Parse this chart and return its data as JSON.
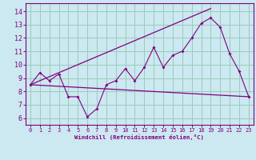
{
  "bg_color": "#cce8f0",
  "line_color": "#800080",
  "grid_color": "#99ccbb",
  "xlabel": "Windchill (Refroidissement éolien,°C)",
  "xlabel_color": "#800080",
  "ylabel_yticks": [
    6,
    7,
    8,
    9,
    10,
    11,
    12,
    13,
    14
  ],
  "xticks": [
    0,
    1,
    2,
    3,
    4,
    5,
    6,
    7,
    8,
    9,
    10,
    11,
    12,
    13,
    14,
    15,
    16,
    17,
    18,
    19,
    20,
    21,
    22,
    23
  ],
  "ylim": [
    5.5,
    14.6
  ],
  "xlim": [
    -0.5,
    23.5
  ],
  "series1_x": [
    0,
    1,
    2,
    3,
    4,
    5,
    6,
    7,
    8,
    9,
    10,
    11,
    12,
    13,
    14,
    15,
    16,
    17,
    18,
    19,
    20,
    21,
    22,
    23
  ],
  "series1_y": [
    8.5,
    9.4,
    8.8,
    9.3,
    7.6,
    7.6,
    6.1,
    6.7,
    8.5,
    8.8,
    9.7,
    8.8,
    9.8,
    11.3,
    9.8,
    10.7,
    11.0,
    12.0,
    13.1,
    13.5,
    12.8,
    10.8,
    9.5,
    7.6
  ],
  "series2_x": [
    0,
    23
  ],
  "series2_y": [
    8.5,
    7.6
  ],
  "series3_x": [
    0,
    19
  ],
  "series3_y": [
    8.5,
    14.2
  ]
}
